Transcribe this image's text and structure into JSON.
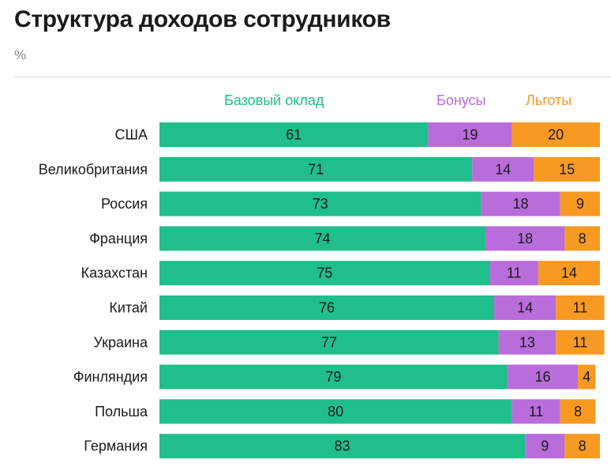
{
  "chart_data": {
    "type": "bar",
    "orientation": "horizontal",
    "stacked": true,
    "title": "Структура доходов сотрудников",
    "unit": "%",
    "categories": [
      "США",
      "Великобритания",
      "Россия",
      "Франция",
      "Казахстан",
      "Китай",
      "Украина",
      "Финляндия",
      "Польша",
      "Германия"
    ],
    "series": [
      {
        "name": "Базовый оклад",
        "color": "#1fbe8a",
        "values": [
          61,
          71,
          73,
          74,
          75,
          76,
          77,
          79,
          80,
          83
        ]
      },
      {
        "name": "Бонусы",
        "color": "#b96ddb",
        "values": [
          19,
          14,
          18,
          18,
          11,
          14,
          13,
          16,
          11,
          9
        ]
      },
      {
        "name": "Льготы",
        "color": "#f79a23",
        "values": [
          20,
          15,
          9,
          8,
          14,
          11,
          11,
          4,
          8,
          8
        ]
      }
    ],
    "xlim": [
      0,
      100
    ],
    "grid": false,
    "legend_position": "top"
  }
}
